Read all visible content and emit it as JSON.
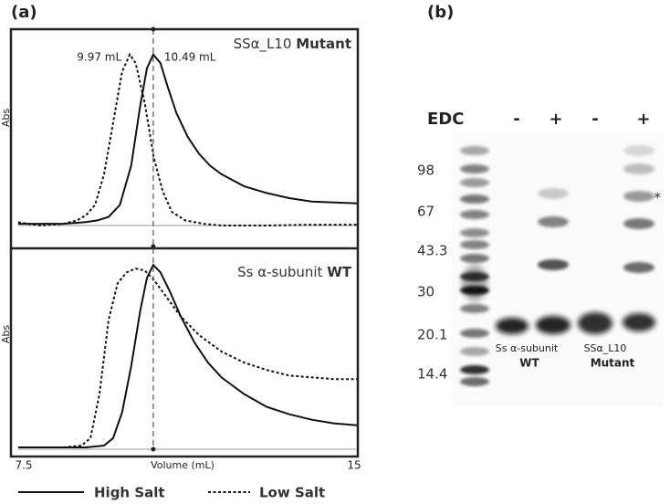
{
  "panel_a_label": "(a)",
  "panel_b_label": "(b)",
  "chart_data": [
    {
      "type": "line",
      "title": "SSα_L10",
      "title_bold": "Mutant",
      "y_label": "Abs",
      "xlim": [
        7.5,
        15
      ],
      "ylim": [
        0,
        1.1
      ],
      "annotations": [
        {
          "x": 9.97,
          "label": "9.97 mL"
        },
        {
          "x": 10.49,
          "label": "10.49 mL"
        }
      ],
      "series": [
        {
          "name": "High Salt",
          "color": "#111111",
          "dash": "solid",
          "x": [
            7.5,
            8.0,
            8.5,
            9.0,
            9.25,
            9.5,
            9.75,
            10.0,
            10.2,
            10.35,
            10.49,
            10.65,
            10.8,
            11.0,
            11.25,
            11.5,
            11.75,
            12.0,
            12.5,
            13.0,
            13.5,
            14.0,
            14.5,
            15.0
          ],
          "values": [
            0.01,
            0.01,
            0.01,
            0.02,
            0.03,
            0.05,
            0.12,
            0.35,
            0.7,
            0.92,
            1.0,
            0.95,
            0.82,
            0.66,
            0.52,
            0.42,
            0.35,
            0.3,
            0.23,
            0.19,
            0.16,
            0.14,
            0.135,
            0.13
          ]
        },
        {
          "name": "Low Salt",
          "color": "#111111",
          "dash": "dotted",
          "x": [
            7.5,
            7.7,
            8.0,
            8.5,
            8.8,
            9.0,
            9.2,
            9.4,
            9.6,
            9.8,
            9.97,
            10.1,
            10.3,
            10.5,
            10.7,
            10.9,
            11.2,
            11.6,
            12.0,
            13.0,
            14.0,
            15.0
          ],
          "values": [
            0.02,
            0.01,
            0.0,
            0.01,
            0.03,
            0.06,
            0.12,
            0.3,
            0.6,
            0.9,
            1.0,
            0.95,
            0.72,
            0.4,
            0.2,
            0.08,
            0.03,
            0.01,
            0.0,
            0.0,
            0.005,
            0.005
          ]
        }
      ]
    },
    {
      "type": "line",
      "title": "Ss α-subunit",
      "title_bold": "WT",
      "y_label": "Abs",
      "x_label": "Volume (mL)",
      "xlim": [
        7.5,
        15
      ],
      "ylim": [
        0,
        1.1
      ],
      "xticks": [
        7.5,
        15
      ],
      "series": [
        {
          "name": "High Salt",
          "color": "#111111",
          "dash": "solid",
          "x": [
            7.5,
            8.5,
            9.0,
            9.4,
            9.6,
            9.8,
            10.0,
            10.2,
            10.35,
            10.49,
            10.65,
            10.85,
            11.1,
            11.4,
            11.7,
            12.0,
            12.5,
            13.0,
            13.5,
            14.0,
            14.5,
            15.0
          ],
          "values": [
            0.01,
            0.01,
            0.01,
            0.02,
            0.06,
            0.2,
            0.45,
            0.75,
            0.93,
            1.0,
            0.96,
            0.86,
            0.72,
            0.58,
            0.47,
            0.39,
            0.3,
            0.23,
            0.19,
            0.16,
            0.14,
            0.13
          ]
        },
        {
          "name": "Low Salt",
          "color": "#111111",
          "dash": "dotted",
          "x": [
            7.5,
            8.5,
            8.9,
            9.1,
            9.3,
            9.5,
            9.7,
            9.9,
            10.1,
            10.3,
            10.5,
            10.8,
            11.1,
            11.5,
            12.0,
            12.5,
            13.0,
            13.5,
            14.0,
            14.5,
            15.0
          ],
          "values": [
            0.01,
            0.01,
            0.02,
            0.06,
            0.3,
            0.7,
            0.9,
            0.96,
            0.98,
            0.97,
            0.92,
            0.82,
            0.72,
            0.62,
            0.53,
            0.47,
            0.43,
            0.4,
            0.39,
            0.38,
            0.38
          ]
        }
      ]
    }
  ],
  "gel": {
    "edc_label": "EDC",
    "lanes": [
      "-",
      "+",
      "-",
      "+"
    ],
    "ladder": [
      98,
      67,
      43.3,
      30,
      20.1,
      14.4
    ],
    "samples": [
      {
        "name": "Ss α-subunit",
        "bold": "WT"
      },
      {
        "name": "SSα_L10",
        "bold": "Mutant"
      }
    ],
    "asterisk": "*"
  }
}
